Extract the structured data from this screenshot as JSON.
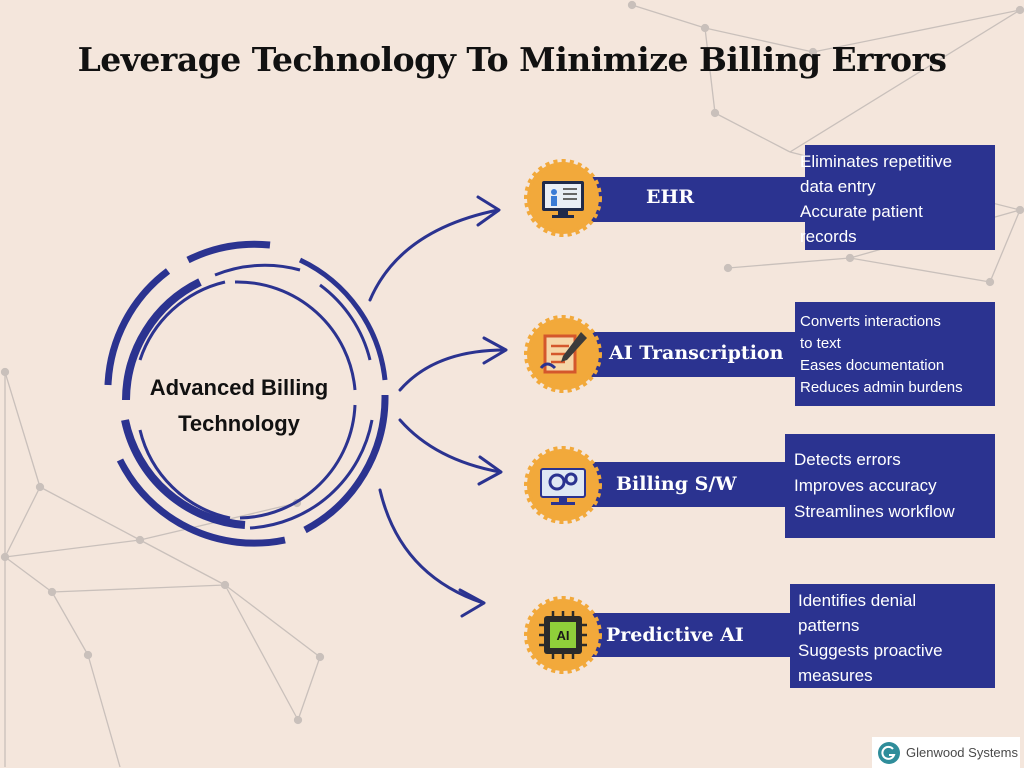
{
  "title": "Leverage Technology To Minimize Billing Errors",
  "center": {
    "line1": "Advanced Billing",
    "line2": "Technology"
  },
  "technologies": [
    {
      "label": "EHR",
      "icon": "ehr-monitor-icon",
      "points": [
        "Eliminates   repetitive",
        "data entry",
        "Accurate patient",
        "records"
      ]
    },
    {
      "label": "AI Transcription",
      "icon": "transcription-notepad-icon",
      "points": [
        "Converts      interactions",
        "to text",
        "Eases documentation",
        "Reduces admin burdens"
      ]
    },
    {
      "label": "Billing S/W",
      "icon": "billing-software-icon",
      "points": [
        "Detects errors",
        "Improves accuracy",
        "Streamlines workflow"
      ]
    },
    {
      "label": "Predictive AI",
      "icon": "ai-chip-icon",
      "points": [
        "Identifies denial",
        "patterns",
        "Suggests proactive",
        "measures"
      ]
    }
  ],
  "brand": "Glenwood Systems",
  "colors": {
    "navy": "#2b3390",
    "gold": "#f2a93b",
    "background": "#f4e6dc"
  }
}
